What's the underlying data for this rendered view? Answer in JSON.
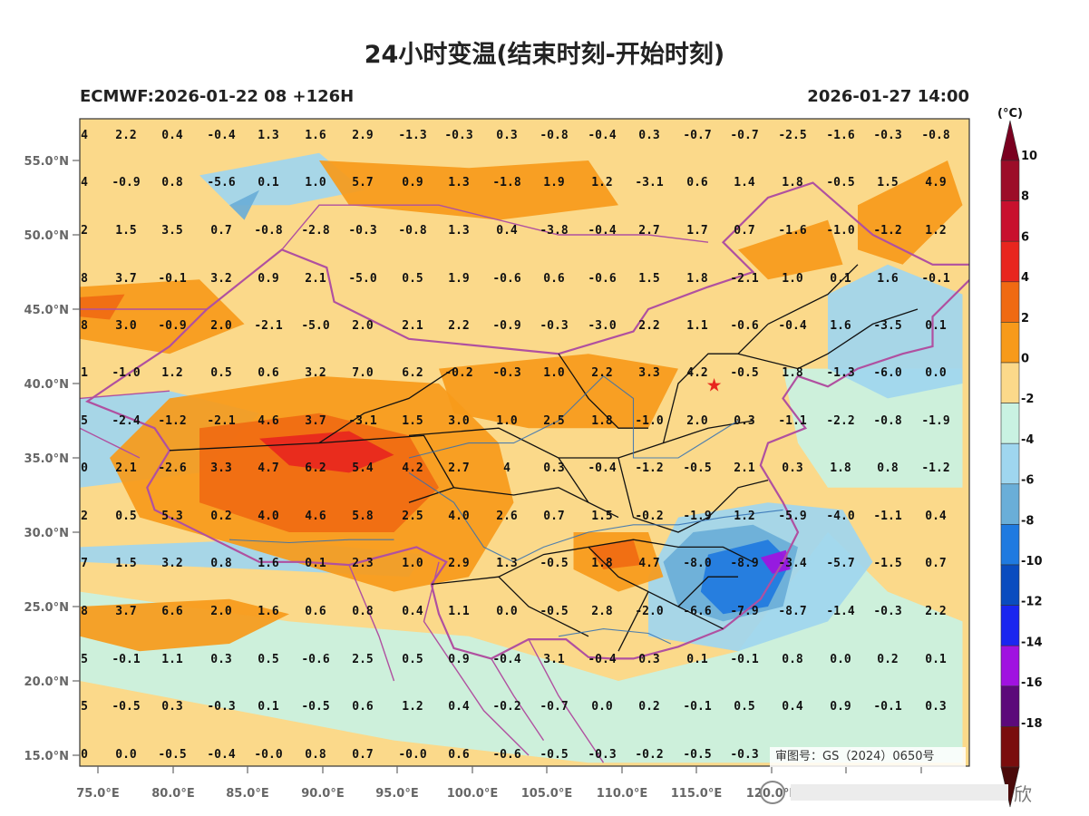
{
  "header": {
    "title": "24小时变温(结束时刻-开始时刻)",
    "model_run": "ECMWF:2026-01-22 08 +126H",
    "valid_time": "2026-01-27 14:00"
  },
  "colorbar": {
    "unit": "(°C)",
    "levels": [
      "10",
      "8",
      "6",
      "4",
      "2",
      "0",
      "-2",
      "-4",
      "-6",
      "-8",
      "-10",
      "-12",
      "-14",
      "-16",
      "-18"
    ],
    "colors": [
      "#9c0d28",
      "#c8102e",
      "#e8261e",
      "#f06a12",
      "#f79a1a",
      "#fbd98a",
      "#c9f2e2",
      "#9fd6ef",
      "#6aaed8",
      "#1f7ae0",
      "#0a4cbf",
      "#1a26f0",
      "#a012e0",
      "#5c0a7a",
      "#7a0d0d"
    ],
    "tip_top_color": "#7a0020",
    "tip_bottom_color": "#4a0a0a"
  },
  "axes": {
    "lat_labels": [
      "55.0°N",
      "50.0°N",
      "45.0°N",
      "40.0°N",
      "35.0°N",
      "30.0°N",
      "25.0°N",
      "20.0°N",
      "15.0°N"
    ],
    "lon_labels": [
      "75.0°E",
      "80.0°E",
      "85.0°E",
      "90.0°E",
      "95.0°E",
      "100.0°E",
      "105.0°E",
      "110.0°E",
      "115.0°E",
      "120.0°E"
    ]
  },
  "grid_values": [
    [
      "4",
      "2.2",
      "0.4",
      "-0.4",
      "1.3",
      "1.6",
      "2.9",
      "-1.3",
      "-0.3",
      "0.3",
      "-0.8",
      "-0.4",
      "0.3",
      "-0.7",
      "-0.7",
      "-2.5",
      "-1.6",
      "-0.3",
      "-0.8"
    ],
    [
      "4",
      "-0.9",
      "0.8",
      "-5.6",
      "0.1",
      "1.0",
      "5.7",
      "0.9",
      "1.3",
      "-1.8",
      "1.9",
      "1.2",
      "-3.1",
      "0.6",
      "1.4",
      "1.8",
      "-0.5",
      "1.5",
      "4.9"
    ],
    [
      "2",
      "1.5",
      "3.5",
      "0.7",
      "-0.8",
      "-2.8",
      "-0.3",
      "-0.8",
      "1.3",
      "0.4",
      "-3.8",
      "-0.4",
      "2.7",
      "1.7",
      "0.7",
      "-1.6",
      "-1.0",
      "-1.2",
      "1.2"
    ],
    [
      "8",
      "3.7",
      "-0.1",
      "3.2",
      "0.9",
      "2.1",
      "-5.0",
      "0.5",
      "1.9",
      "-0.6",
      "0.6",
      "-0.6",
      "1.5",
      "1.8",
      "-2.1",
      "1.0",
      "0.1",
      "1.6",
      "-0.1"
    ],
    [
      "8",
      "3.0",
      "-0.9",
      "2.0",
      "-2.1",
      "-5.0",
      "2.0",
      "2.1",
      "2.2",
      "-0.9",
      "-0.3",
      "-3.0",
      "2.2",
      "1.1",
      "-0.6",
      "-0.4",
      "1.6",
      "-3.5",
      "0.1"
    ],
    [
      "1",
      "-1.0",
      "1.2",
      "0.5",
      "0.6",
      "3.2",
      "7.0",
      "6.2",
      "-0.2",
      "-0.3",
      "1.0",
      "2.2",
      "3.3",
      "4.2",
      "-0.5",
      "1.8",
      "-1.3",
      "-6.0",
      "0.0"
    ],
    [
      "5",
      "-2.4",
      "-1.2",
      "-2.1",
      "4.6",
      "3.7",
      "-3.1",
      "1.5",
      "3.0",
      "1.0",
      "2.5",
      "1.8",
      "-1.0",
      "2.0",
      "0.3",
      "-1.1",
      "-2.2",
      "-0.8",
      "-1.9"
    ],
    [
      "0",
      "2.1",
      "-2.6",
      "3.3",
      "4.7",
      "6.2",
      "5.4",
      "4.2",
      "2.7",
      "4",
      "0.3",
      "-0.4",
      "-1.2",
      "-0.5",
      "2.1",
      "0.3",
      "1.8",
      "0.8",
      "-1.2"
    ],
    [
      "2",
      "0.5",
      "5.3",
      "0.2",
      "4.0",
      "4.6",
      "5.8",
      "2.5",
      "4.0",
      "2.6",
      "0.7",
      "1.5",
      "-0.2",
      "-1.9",
      "1.2",
      "-5.9",
      "-4.0",
      "-1.1",
      "0.4"
    ],
    [
      "7",
      "1.5",
      "3.2",
      "0.8",
      "1.6",
      "0.1",
      "2.3",
      "1.0",
      "2.9",
      "1.3",
      "-0.5",
      "1.8",
      "4.7",
      "-8.0",
      "-8.9",
      "-3.4",
      "-5.7",
      "-1.5",
      "0.7"
    ],
    [
      "8",
      "3.7",
      "6.6",
      "2.0",
      "1.6",
      "0.6",
      "0.8",
      "0.4",
      "1.1",
      "0.0",
      "-0.5",
      "2.8",
      "-2.0",
      "-6.6",
      "-7.9",
      "-8.7",
      "-1.4",
      "-0.3",
      "2.2"
    ],
    [
      "5",
      "-0.1",
      "1.1",
      "0.3",
      "0.5",
      "-0.6",
      "2.5",
      "0.5",
      "0.9",
      "-0.4",
      "3.1",
      "-0.4",
      "0.3",
      "0.1",
      "-0.1",
      "0.8",
      "0.0",
      "0.2",
      "0.1"
    ],
    [
      "5",
      "-0.5",
      "0.3",
      "-0.3",
      "0.1",
      "-0.5",
      "0.6",
      "1.2",
      "0.4",
      "-0.2",
      "-0.7",
      "0.0",
      "0.2",
      "-0.1",
      "0.5",
      "0.4",
      "0.9",
      "-0.1",
      "0.3"
    ],
    [
      "0",
      "0.0",
      "-0.5",
      "-0.4",
      "-0.0",
      "0.8",
      "0.7",
      "-0.0",
      "0.6",
      "-0.6",
      "-0.5",
      "-0.3",
      "-0.2",
      "-0.5",
      "-0.3",
      "",
      "",
      "",
      ""
    ]
  ],
  "marker": {
    "name": "Beijing",
    "symbol": "★",
    "color": "#e8261e",
    "lon": 116.4,
    "lat": 39.9
  },
  "map_colors": {
    "ocean": "#c9f2e2",
    "land_base": "#fbd98a",
    "warm": "#f79a1a",
    "hot": "#f06a12",
    "very_hot": "#e8261e",
    "cool": "#9fd6ef",
    "cold": "#6aaed8",
    "colder": "#1f7ae0",
    "coldest": "#a012e0",
    "border_intl": "#b050a0",
    "border_prov": "#111111",
    "river": "#2f6fb4"
  },
  "stamp_text": "审图号：GS（2024）0650号",
  "watermark_text": "欣"
}
